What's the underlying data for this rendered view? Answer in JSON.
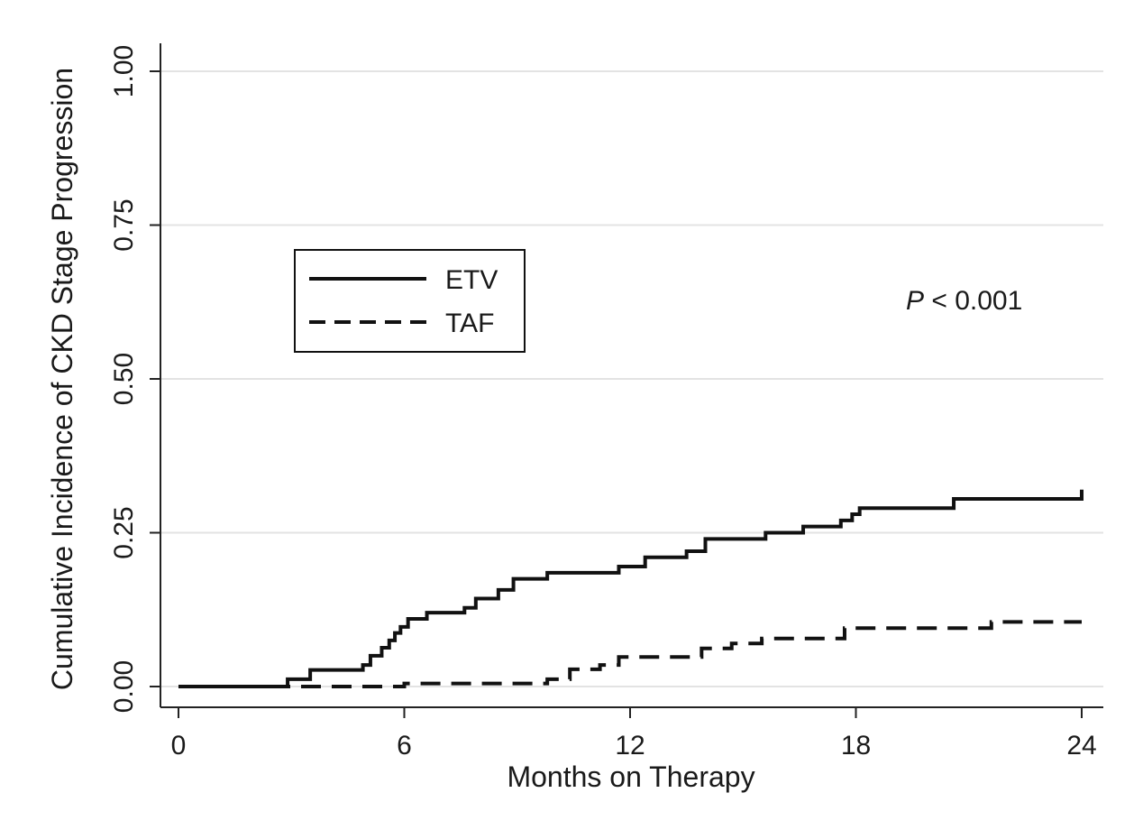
{
  "chart_data": {
    "type": "line",
    "title": "",
    "xlabel": "Months on Therapy",
    "ylabel": "Cumulative Incidence of CKD Stage Progression",
    "xlim": [
      0,
      24
    ],
    "ylim": [
      0,
      1
    ],
    "x_ticks": [
      0,
      6,
      12,
      18,
      24
    ],
    "x_tick_labels": [
      "0",
      "6",
      "12",
      "18",
      "24"
    ],
    "y_ticks": [
      0,
      0.25,
      0.5,
      0.75,
      1.0
    ],
    "y_tick_labels": [
      "0.00",
      "0.25",
      "0.50",
      "0.75",
      "1.00"
    ],
    "grid": "horizontal",
    "legend_position": "upper-left",
    "annotation": {
      "italic": "P",
      "rest": " < 0.001"
    },
    "series": [
      {
        "name": "ETV",
        "style": "solid",
        "step": true,
        "x": [
          0,
          2.9,
          3.5,
          4.9,
          5.1,
          5.4,
          5.6,
          5.75,
          5.9,
          6.1,
          6.6,
          7.6,
          7.9,
          8.5,
          8.9,
          9.8,
          11.7,
          12.4,
          13.5,
          14.0,
          15.6,
          16.6,
          17.6,
          17.9,
          18.1,
          20.6,
          24
        ],
        "y": [
          0,
          0.012,
          0.027,
          0.035,
          0.05,
          0.063,
          0.075,
          0.087,
          0.097,
          0.11,
          0.12,
          0.128,
          0.143,
          0.157,
          0.175,
          0.185,
          0.195,
          0.21,
          0.22,
          0.24,
          0.25,
          0.26,
          0.27,
          0.28,
          0.29,
          0.305,
          0.32
        ]
      },
      {
        "name": "TAF",
        "style": "dashed",
        "step": true,
        "x": [
          0,
          6.0,
          9.8,
          10.4,
          11.2,
          11.7,
          13.9,
          14.7,
          15.5,
          17.7,
          21.6,
          24
        ],
        "y": [
          0,
          0.005,
          0.012,
          0.028,
          0.035,
          0.048,
          0.062,
          0.07,
          0.078,
          0.095,
          0.105,
          0.105
        ]
      }
    ]
  },
  "colors": {
    "line": "#111111",
    "grid": "#e3e3e3",
    "axis": "#222222"
  }
}
